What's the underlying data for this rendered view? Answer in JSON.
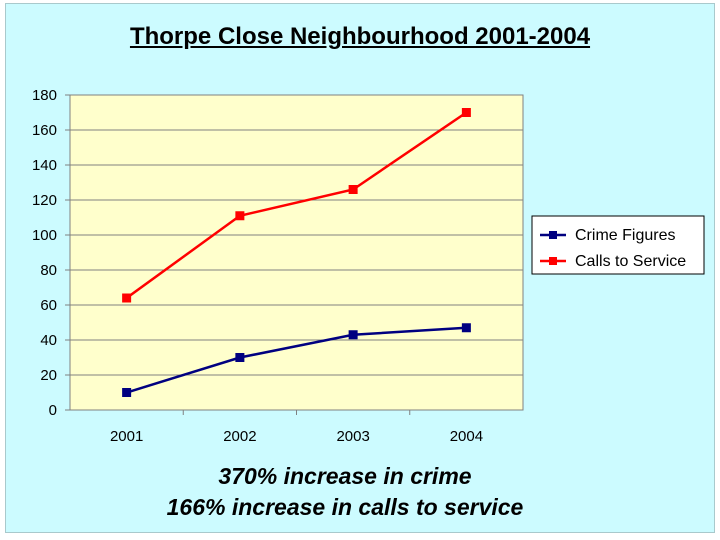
{
  "chart_data": {
    "type": "line",
    "title": "Thorpe Close Neighbourhood 2001-2004",
    "categories": [
      "2001",
      "2002",
      "2003",
      "2004"
    ],
    "series": [
      {
        "name": "Crime Figures",
        "values": [
          10,
          30,
          43,
          47
        ],
        "color": "#000080"
      },
      {
        "name": "Calls to Service",
        "values": [
          64,
          111,
          126,
          170
        ],
        "color": "#ff0000"
      }
    ],
    "ylim": [
      0,
      180
    ],
    "yticks": [
      "0",
      "20",
      "40",
      "60",
      "80",
      "100",
      "120",
      "140",
      "160",
      "180"
    ],
    "grid": true,
    "plot_background": "#ffffcc",
    "legend_position": "right",
    "xlabel": "",
    "ylabel": ""
  },
  "captions": {
    "line1": "370% increase in crime",
    "line2": "166% increase in calls to service"
  },
  "colors": {
    "slide_background": "#ccfbff",
    "plot_background": "#ffffcc"
  }
}
